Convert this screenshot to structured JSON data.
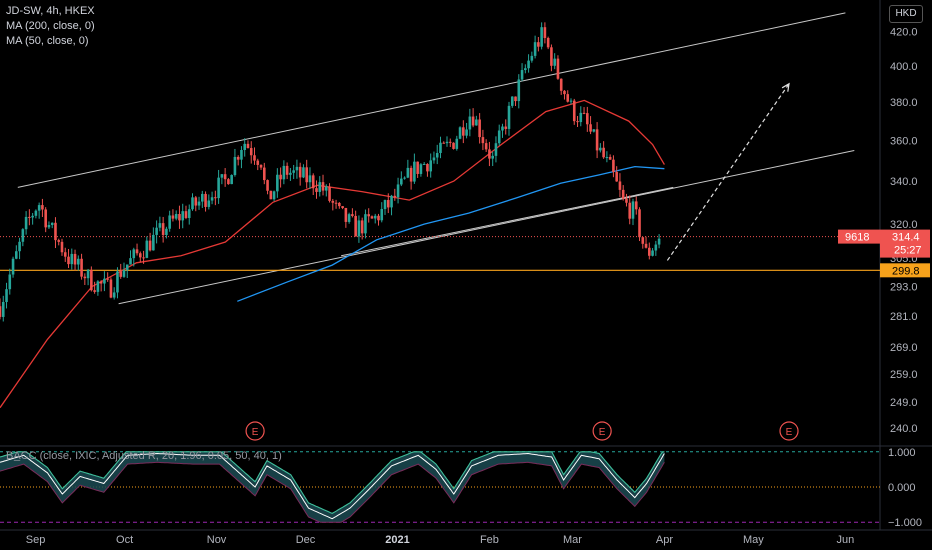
{
  "header": {
    "title": "JD-SW, 4h, HKEX",
    "ma200_label": "MA (200, close, 0)",
    "ma50_label": "MA (50, close, 0)",
    "currency": "HKD",
    "indicator_label": "BA̲CC (close, IXIC, Adjusted R, 20, 1.96, 0.05, 50, 40, 1)"
  },
  "colors": {
    "background": "#000000",
    "up": "#26a69a",
    "down": "#ef5350",
    "ma50": "#e53935",
    "ma200": "#2196f3",
    "channel": "#c8c8c8",
    "support": "#f7a21b",
    "price_tag": "#ef5350",
    "indicator": "#3fbf9b"
  },
  "chart_data": [
    {
      "type": "candlestick",
      "title": "JD-SW, 4h, HKEX",
      "ylim": [
        236,
        434
      ],
      "y_ticks": [
        "420.0",
        "400.0",
        "380.0",
        "360.0",
        "340.0",
        "320.0",
        "305.0",
        "293.0",
        "281.0",
        "269.0",
        "259.0",
        "249.0",
        "240.0"
      ],
      "x_ticks": [
        "Sep",
        "Oct",
        "Nov",
        "Dec",
        "2021",
        "Feb",
        "Mar",
        "Apr",
        "May",
        "Jun"
      ],
      "x_range": [
        "2020-08-20",
        "2021-06-12"
      ],
      "price_path": [
        [
          "2020-08-20",
          285
        ],
        [
          "2020-08-26",
          308
        ],
        [
          "2020-08-29",
          320
        ],
        [
          "2020-09-02",
          330
        ],
        [
          "2020-09-06",
          318
        ],
        [
          "2020-09-12",
          305
        ],
        [
          "2020-09-20",
          295
        ],
        [
          "2020-09-26",
          292
        ],
        [
          "2020-09-30",
          300
        ],
        [
          "2020-10-08",
          310
        ],
        [
          "2020-10-16",
          320
        ],
        [
          "2020-10-26",
          330
        ],
        [
          "2020-11-04",
          340
        ],
        [
          "2020-11-10",
          360
        ],
        [
          "2020-11-16",
          350
        ],
        [
          "2020-11-18",
          330
        ],
        [
          "2020-11-24",
          345
        ],
        [
          "2020-11-30",
          342
        ],
        [
          "2020-12-06",
          338
        ],
        [
          "2020-12-12",
          325
        ],
        [
          "2020-12-18",
          318
        ],
        [
          "2020-12-24",
          322
        ],
        [
          "2020-12-30",
          330
        ],
        [
          "2021-01-06",
          345
        ],
        [
          "2021-01-14",
          352
        ],
        [
          "2021-01-20",
          360
        ],
        [
          "2021-01-26",
          375
        ],
        [
          "2021-02-02",
          350
        ],
        [
          "2021-02-10",
          385
        ],
        [
          "2021-02-16",
          410
        ],
        [
          "2021-02-19",
          418
        ],
        [
          "2021-02-24",
          395
        ],
        [
          "2021-03-01",
          375
        ],
        [
          "2021-03-05",
          370
        ],
        [
          "2021-03-10",
          355
        ],
        [
          "2021-03-14",
          345
        ],
        [
          "2021-03-18",
          330
        ],
        [
          "2021-03-22",
          325
        ],
        [
          "2021-03-24",
          315
        ],
        [
          "2021-03-26",
          306
        ],
        [
          "2021-03-29",
          312
        ],
        [
          "2021-03-31",
          314.4
        ]
      ],
      "events": [
        {
          "label": "E",
          "date": "2020-11-14"
        },
        {
          "label": "E",
          "date": "2021-03-11"
        },
        {
          "label": "E",
          "date": "2021-05-13"
        }
      ],
      "channel_upper": [
        [
          "2020-08-26",
          337
        ],
        [
          "2021-06-01",
          431
        ]
      ],
      "channel_lower": [
        [
          "2020-09-29",
          286
        ],
        [
          "2021-06-04",
          355
        ]
      ],
      "channel_mid": [
        [
          "2020-12-13",
          306
        ],
        [
          "2021-04-04",
          337
        ]
      ],
      "projection": [
        [
          "2021-04-02",
          304
        ],
        [
          "2021-05-13",
          390
        ]
      ],
      "ma200_path": [
        [
          "2020-11-08",
          287
        ],
        [
          "2020-11-25",
          295
        ],
        [
          "2020-12-10",
          302
        ],
        [
          "2020-12-25",
          313
        ],
        [
          "2021-01-10",
          320
        ],
        [
          "2021-01-25",
          325
        ],
        [
          "2021-02-10",
          332
        ],
        [
          "2021-02-25",
          339
        ],
        [
          "2021-03-10",
          343
        ],
        [
          "2021-03-22",
          347
        ],
        [
          "2021-04-01",
          346
        ]
      ],
      "ma50_path": [
        [
          "2020-08-20",
          247
        ],
        [
          "2020-09-05",
          272
        ],
        [
          "2020-09-20",
          293
        ],
        [
          "2020-10-05",
          303
        ],
        [
          "2020-10-20",
          306
        ],
        [
          "2020-11-04",
          312
        ],
        [
          "2020-11-20",
          330
        ],
        [
          "2020-12-05",
          338
        ],
        [
          "2020-12-20",
          335
        ],
        [
          "2021-01-05",
          331
        ],
        [
          "2021-01-20",
          340
        ],
        [
          "2021-02-05",
          358
        ],
        [
          "2021-02-20",
          375
        ],
        [
          "2021-03-05",
          381
        ],
        [
          "2021-03-20",
          370
        ],
        [
          "2021-03-28",
          358
        ],
        [
          "2021-04-01",
          348
        ]
      ],
      "support_line": {
        "value": 299.8,
        "label": "299.8"
      },
      "last_price": {
        "symbol": "9618",
        "value": 314.4,
        "label": "314.4",
        "countdown": "25:27"
      }
    },
    {
      "type": "line",
      "title": "",
      "ylim": [
        -1.05,
        1.05
      ],
      "y_ticks": [
        "1.000",
        "0.000",
        "−1.000"
      ],
      "ref_lines": [
        1.0,
        0.0,
        -1.0
      ],
      "series": [
        {
          "values": [
            [
              "2020-08-20",
              0.7
            ],
            [
              "2020-08-28",
              0.9
            ],
            [
              "2020-09-05",
              0.4
            ],
            [
              "2020-09-10",
              -0.2
            ],
            [
              "2020-09-16",
              0.3
            ],
            [
              "2020-09-24",
              0.1
            ],
            [
              "2020-10-02",
              0.9
            ],
            [
              "2020-10-12",
              0.95
            ],
            [
              "2020-10-24",
              0.9
            ],
            [
              "2020-11-02",
              0.9
            ],
            [
              "2020-11-10",
              0.3
            ],
            [
              "2020-11-14",
              0.0
            ],
            [
              "2020-11-18",
              0.6
            ],
            [
              "2020-11-26",
              0.2
            ],
            [
              "2020-12-02",
              -0.6
            ],
            [
              "2020-12-10",
              -0.9
            ],
            [
              "2020-12-16",
              -0.6
            ],
            [
              "2020-12-22",
              -0.1
            ],
            [
              "2020-12-30",
              0.6
            ],
            [
              "2021-01-08",
              0.9
            ],
            [
              "2021-01-14",
              0.5
            ],
            [
              "2021-01-20",
              -0.2
            ],
            [
              "2021-01-26",
              0.6
            ],
            [
              "2021-02-04",
              0.9
            ],
            [
              "2021-02-14",
              0.95
            ],
            [
              "2021-02-22",
              0.85
            ],
            [
              "2021-02-26",
              0.2
            ],
            [
              "2021-03-04",
              0.9
            ],
            [
              "2021-03-10",
              0.8
            ],
            [
              "2021-03-16",
              0.2
            ],
            [
              "2021-03-22",
              -0.3
            ],
            [
              "2021-03-26",
              0.1
            ],
            [
              "2021-04-01",
              0.95
            ]
          ]
        }
      ]
    }
  ]
}
